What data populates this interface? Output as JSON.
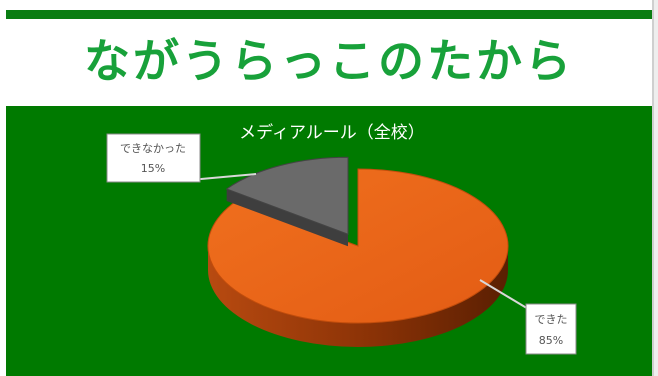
{
  "banner": {
    "title": "ながうらっこのたから"
  },
  "colors": {
    "panel": "#007a00",
    "banner_text": "#18a13a",
    "slice_done": "#e8641a",
    "slice_not_done": "#6a6a6a"
  },
  "chart_data": {
    "type": "pie",
    "title": "メディアルール（全校）",
    "categories": [
      "できた",
      "できなかった"
    ],
    "values": [
      85,
      15
    ],
    "data_labels": [
      {
        "category": "できた",
        "value": "85%"
      },
      {
        "category": "できなかった",
        "value": "15%"
      }
    ],
    "style": "3d-exploded",
    "legend": "none"
  }
}
